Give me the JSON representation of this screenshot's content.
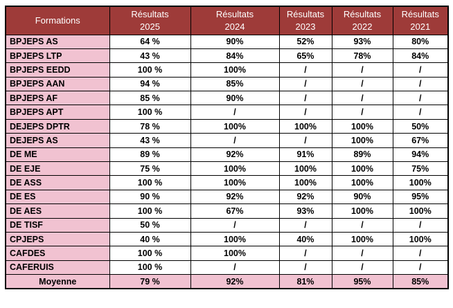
{
  "colors": {
    "header_bg": "#9E3B39",
    "header_text": "#FFFFFF",
    "pink_bg": "#F1C2D1",
    "border": "#000000"
  },
  "table": {
    "header": {
      "formations_label": "Formations",
      "year_columns": [
        {
          "line1": "Résultats",
          "line2": "2025"
        },
        {
          "line1": "Résultats",
          "line2": "2024"
        },
        {
          "line1": "Résultats",
          "line2": "2023"
        },
        {
          "line1": "Résultats",
          "line2": "2022"
        },
        {
          "line1": "Résultats",
          "line2": "2021"
        }
      ]
    },
    "rows": [
      {
        "formation": "BPJEPS AS",
        "values": [
          "64 %",
          "90%",
          "52%",
          "93%",
          "80%"
        ]
      },
      {
        "formation": "BPJEPS LTP",
        "values": [
          "43 %",
          "84%",
          "65%",
          "78%",
          "84%"
        ]
      },
      {
        "formation": "BPJEPS EEDD",
        "values": [
          "100 %",
          "100%",
          "/",
          "/",
          "/"
        ]
      },
      {
        "formation": "BPJEPS AAN",
        "values": [
          "94 %",
          "85%",
          "/",
          "/",
          "/"
        ]
      },
      {
        "formation": "BPJEPS AF",
        "values": [
          "85 %",
          "90%",
          "/",
          "/",
          "/"
        ]
      },
      {
        "formation": "BPJEPS APT",
        "values": [
          "100 %",
          "/",
          "/",
          "/",
          "/"
        ]
      },
      {
        "formation": "DEJEPS DPTR",
        "values": [
          "78 %",
          "100%",
          "100%",
          "100%",
          "50%"
        ]
      },
      {
        "formation": "DEJEPS AS",
        "values": [
          "43 %",
          "/",
          "/",
          "100%",
          "67%"
        ]
      },
      {
        "formation": "DE ME",
        "values": [
          "89 %",
          "92%",
          "91%",
          "89%",
          "94%"
        ]
      },
      {
        "formation": "DE EJE",
        "values": [
          "75 %",
          "100%",
          "100%",
          "100%",
          "75%"
        ]
      },
      {
        "formation": "DE ASS",
        "values": [
          "100 %",
          "100%",
          "100%",
          "100%",
          "100%"
        ]
      },
      {
        "formation": "DE ES",
        "values": [
          "90 %",
          "92%",
          "92%",
          "90%",
          "95%"
        ]
      },
      {
        "formation": "DE AES",
        "values": [
          "100 %",
          "67%",
          "93%",
          "100%",
          "100%"
        ]
      },
      {
        "formation": "DE TISF",
        "values": [
          "50 %",
          "/",
          "/",
          "/",
          "/"
        ]
      },
      {
        "formation": "CPJEPS",
        "values": [
          "40 %",
          "100%",
          "40%",
          "100%",
          "100%"
        ]
      },
      {
        "formation": "CAFDES",
        "values": [
          "100 %",
          "100%",
          "/",
          "/",
          "/"
        ]
      },
      {
        "formation": "CAFERUIS",
        "values": [
          "100 %",
          "/",
          "/",
          "/",
          "/"
        ]
      }
    ],
    "footer": {
      "label": "Moyenne",
      "values": [
        "79 %",
        "92%",
        "81%",
        "95%",
        "85%"
      ]
    }
  }
}
